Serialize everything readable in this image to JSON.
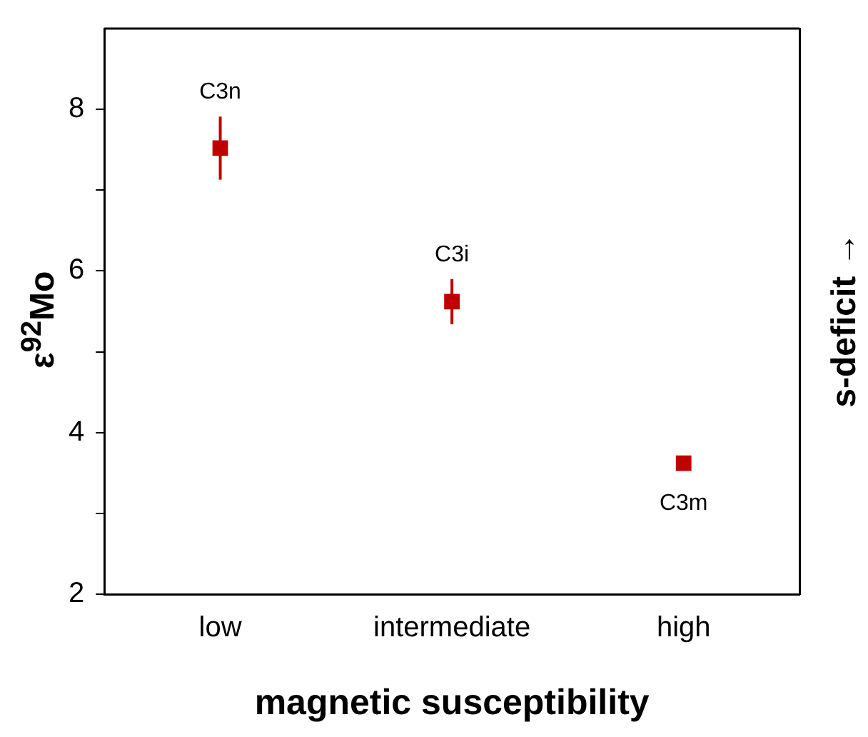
{
  "chart_data": {
    "type": "scatter",
    "xlabel": "magnetic susceptibility",
    "ylabel": "ε$^{92}$Mo",
    "y2label": "s-deficit →",
    "categories": [
      "low",
      "intermediate",
      "high"
    ],
    "series": [
      {
        "color": "#c00000",
        "values": [
          7.52,
          5.62,
          3.62
        ],
        "errors": [
          0.39,
          0.28,
          null
        ]
      }
    ],
    "ylim": [
      2,
      9
    ],
    "yticks": [
      2,
      {
        "value": 3,
        "label": null
      },
      4,
      {
        "value": 5,
        "label": null
      },
      6,
      {
        "value": 7,
        "label": null
      },
      8
    ],
    "marker": "square",
    "grid": false,
    "legend": false,
    "annotations": [
      {
        "text": "C3n",
        "x": "low",
        "y": 7.52
      },
      {
        "text": "C3i",
        "x": "intermediate",
        "y": 5.62
      },
      {
        "text": "C3m",
        "x": "high",
        "y": 3.62
      }
    ]
  }
}
